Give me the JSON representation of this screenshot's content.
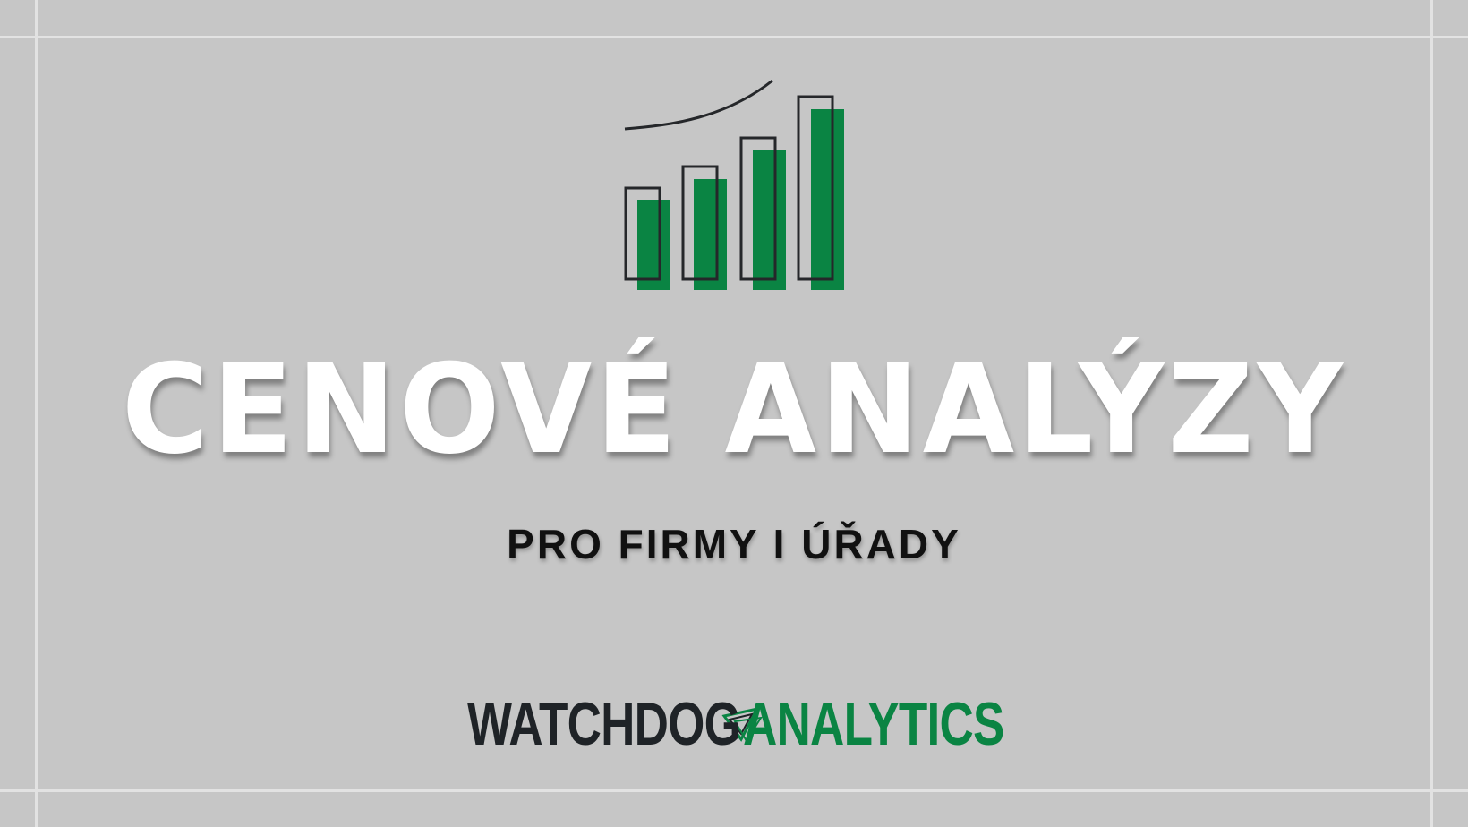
{
  "title": "CENOVÉ ANALÝZY",
  "subtitle": "PRO FIRMY I ÚŘADY",
  "brand": {
    "left_word": "WATCHDOG",
    "right_word": "ANALYTICS"
  },
  "icons": {
    "hero": "rising-bar-chart-icon",
    "logo": "triangle-logo-icon"
  },
  "colors": {
    "background": "#c6c6c6",
    "accent_green": "#0a8443",
    "dark": "#1f2327",
    "title": "#ffffff"
  }
}
